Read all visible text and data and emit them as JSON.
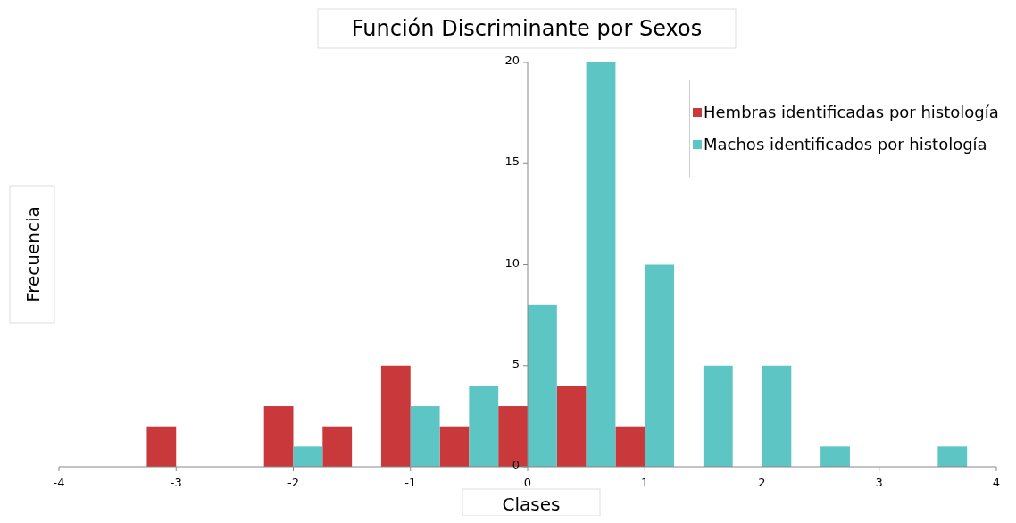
{
  "chart_data": {
    "type": "bar",
    "title": "Función Discriminante por Sexos",
    "xlabel": "Clases",
    "ylabel": "Frecuencia",
    "x": [
      -3,
      -2.5,
      -2,
      -1.5,
      -1,
      -0.5,
      0,
      0.5,
      1,
      1.5,
      2,
      2.5,
      3,
      3.5
    ],
    "series": [
      {
        "name": "Hembras identificadas por histología",
        "color": "#c9383a",
        "values": [
          2,
          null,
          3,
          2,
          5,
          2,
          3,
          4,
          2,
          null,
          null,
          null,
          null,
          null
        ]
      },
      {
        "name": "Machos identificados por histología",
        "color": "#5ec5c5",
        "values": [
          null,
          null,
          1,
          null,
          3,
          4,
          8,
          20,
          10,
          5,
          5,
          1,
          null,
          1
        ]
      }
    ],
    "xlim": [
      -4,
      4
    ],
    "xticks": [
      -4,
      -3,
      -2,
      -1,
      0,
      1,
      2,
      3,
      4
    ],
    "ylim": [
      0,
      20
    ],
    "yticks": [
      0,
      5,
      10,
      15,
      20
    ],
    "grid": false,
    "legend": "top right"
  }
}
